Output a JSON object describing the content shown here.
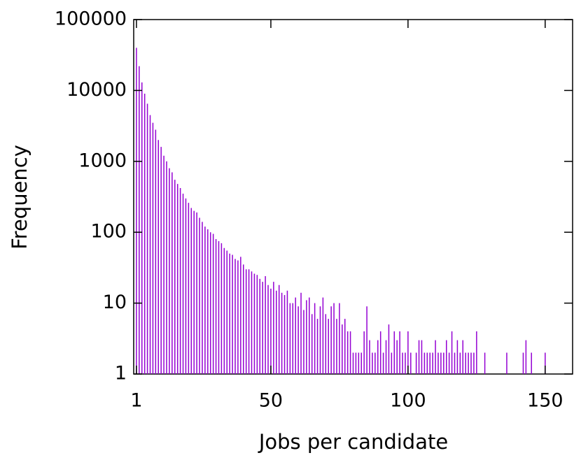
{
  "chart_data": {
    "type": "impulse",
    "x_label": "Jobs per candidate",
    "y_label": "Frequency",
    "color": "#9400d3",
    "log_y": true,
    "xlim": [
      0,
      160
    ],
    "xticks": [
      1,
      50,
      100,
      150
    ],
    "ylim": [
      1,
      100000
    ],
    "yticks": [
      1,
      10,
      100,
      1000,
      10000,
      100000
    ],
    "x": [
      1,
      2,
      3,
      4,
      5,
      6,
      7,
      8,
      9,
      10,
      11,
      12,
      13,
      14,
      15,
      16,
      17,
      18,
      19,
      20,
      21,
      22,
      23,
      24,
      25,
      26,
      27,
      28,
      29,
      30,
      31,
      32,
      33,
      34,
      35,
      36,
      37,
      38,
      39,
      40,
      41,
      42,
      43,
      44,
      45,
      46,
      47,
      48,
      49,
      50,
      51,
      52,
      53,
      54,
      55,
      56,
      57,
      58,
      59,
      60,
      61,
      62,
      63,
      64,
      65,
      66,
      67,
      68,
      69,
      70,
      71,
      72,
      73,
      74,
      75,
      76,
      77,
      78,
      79,
      80,
      81,
      82,
      83,
      84,
      85,
      86,
      87,
      88,
      89,
      90,
      91,
      92,
      93,
      94,
      95,
      96,
      97,
      98,
      99,
      100,
      101,
      103,
      104,
      105,
      106,
      107,
      108,
      109,
      110,
      111,
      112,
      113,
      114,
      115,
      116,
      117,
      118,
      119,
      120,
      121,
      122,
      123,
      124,
      125,
      128,
      136,
      142,
      143,
      145,
      150
    ],
    "values": [
      40000,
      22000,
      13000,
      9000,
      6500,
      4500,
      3500,
      2800,
      2000,
      1600,
      1200,
      1000,
      800,
      700,
      550,
      480,
      420,
      350,
      300,
      260,
      220,
      200,
      190,
      160,
      140,
      120,
      110,
      100,
      95,
      80,
      75,
      70,
      60,
      55,
      50,
      48,
      42,
      40,
      45,
      35,
      30,
      30,
      28,
      26,
      25,
      22,
      20,
      24,
      18,
      16,
      20,
      15,
      18,
      14,
      13,
      15,
      10,
      10,
      12,
      9,
      14,
      8,
      11,
      12,
      7,
      10,
      6,
      9,
      12,
      7,
      6,
      9,
      10,
      6,
      10,
      5,
      6,
      4,
      4,
      2,
      2,
      2,
      2,
      4,
      9,
      3,
      2,
      2,
      3,
      4,
      2,
      3,
      5,
      2,
      4,
      3,
      4,
      2,
      2,
      4,
      2,
      2,
      3,
      3,
      2,
      2,
      2,
      2,
      3,
      2,
      2,
      2,
      3,
      2,
      4,
      2,
      3,
      2,
      3,
      2,
      2,
      2,
      2,
      4,
      2,
      2,
      2,
      3,
      2,
      2
    ]
  }
}
